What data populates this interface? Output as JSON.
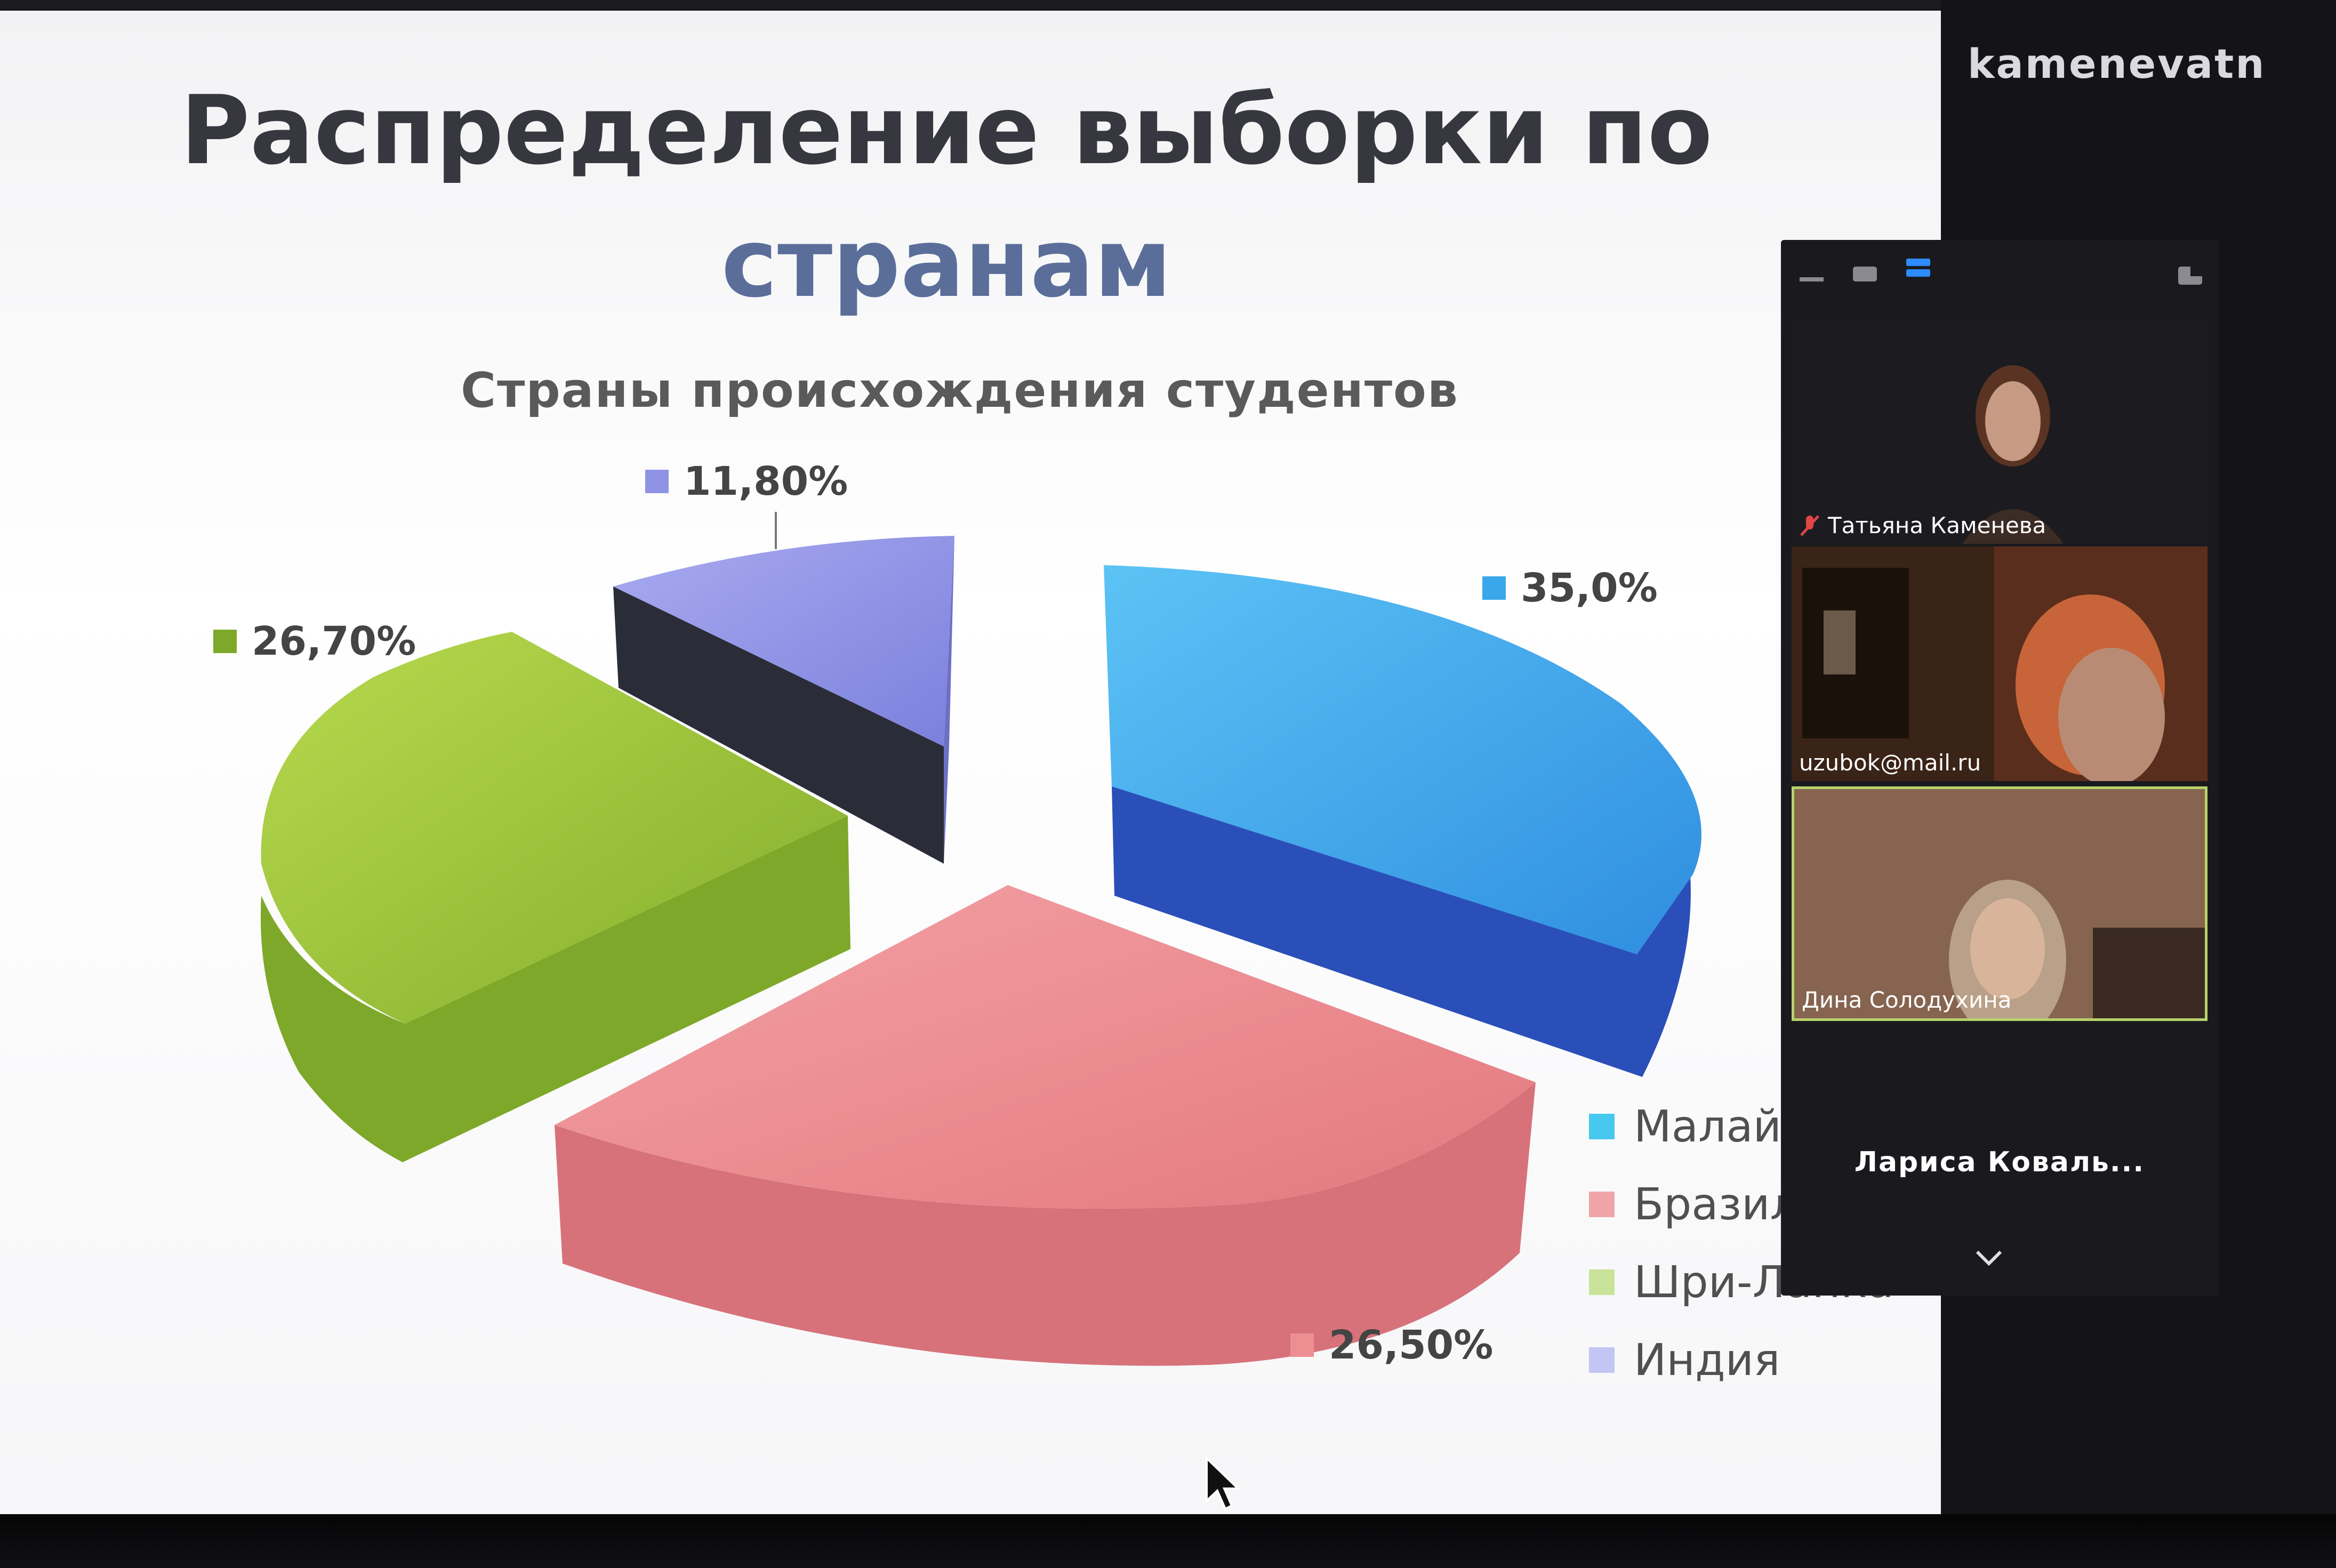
{
  "slide": {
    "title_line1": "Распределение выборки по",
    "title_line2": "странам"
  },
  "chart_data": {
    "type": "pie",
    "title": "Страны происхождения студентов",
    "series": [
      {
        "name": "Малайзия",
        "value": 35.0,
        "label": "35,0%",
        "color": "#3aa7ea"
      },
      {
        "name": "Бразилия",
        "value": 26.5,
        "label": "26,50%",
        "color": "#ec8e92"
      },
      {
        "name": "Шри-Ланка",
        "value": 26.7,
        "label": "26,70%",
        "color": "#9bc23a"
      },
      {
        "name": "Индия",
        "value": 11.8,
        "label": "11,80%",
        "color": "#8f93e6"
      }
    ],
    "legend": "right",
    "legend_labels": [
      "Малай",
      "Бразил",
      "Шри-Ланка",
      "Индия"
    ]
  },
  "meeting": {
    "host_name": "kamenevatn",
    "participants": [
      {
        "name": "Татьяна Каменева",
        "muted": true
      },
      {
        "name": "uzubok@mail.ru",
        "muted": false
      },
      {
        "name": "Дина Солодухина",
        "muted": false,
        "active": true
      }
    ],
    "overflow_participant": "Лариса  Коваль..."
  }
}
